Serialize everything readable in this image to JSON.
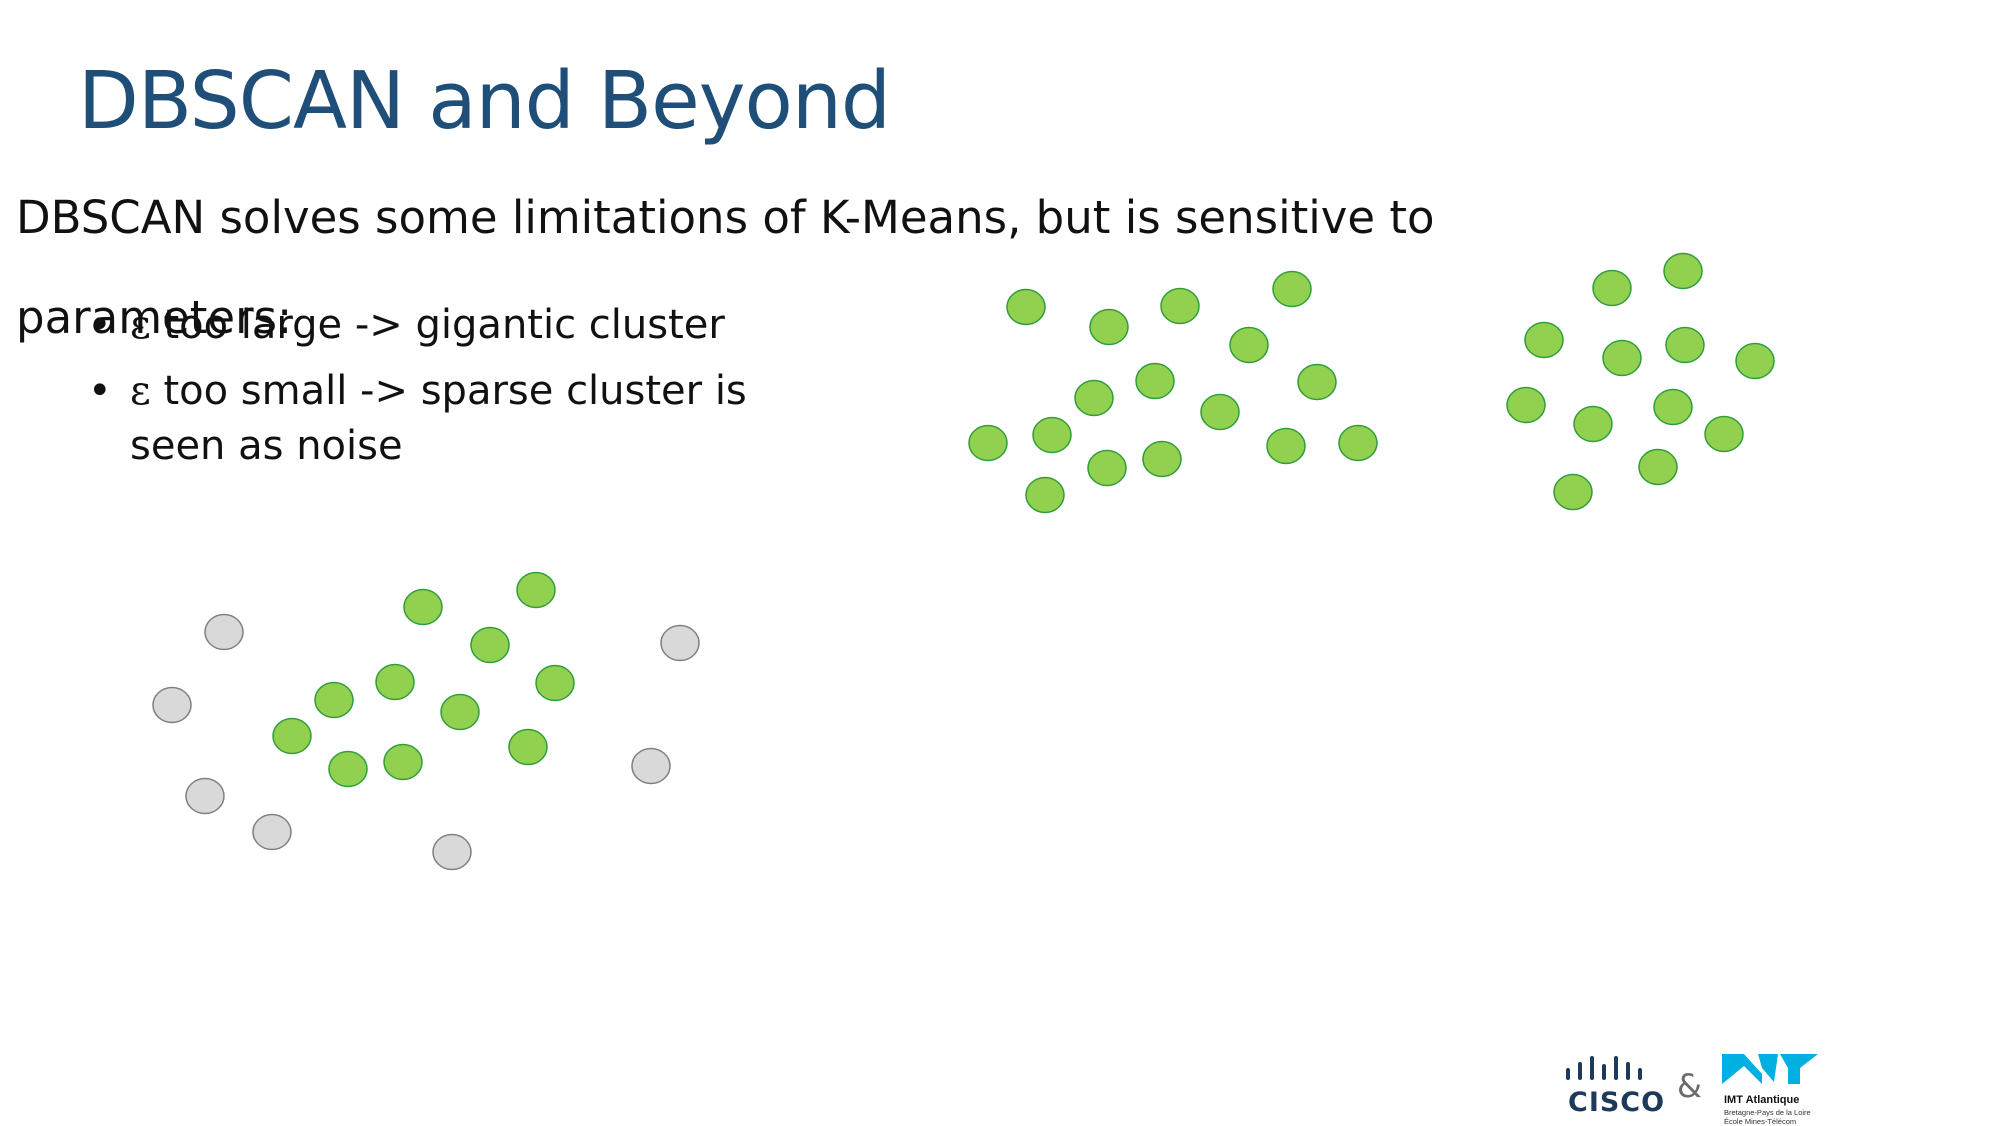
{
  "slide": {
    "title": "DBSCAN and Beyond",
    "body": "DBSCAN solves some limitations of K-Means, but is sensitive to parameters:",
    "bullets": [
      {
        "symbol": "ε",
        "text": " too large -> gigantic cluster"
      },
      {
        "symbol": "ε",
        "text": " too small -> sparse cluster is seen as noise"
      }
    ]
  },
  "colors": {
    "title": "#1f4e79",
    "cluster_fill": "#92d050",
    "cluster_stroke": "#2e9e3a",
    "noise_fill": "#d9d9d9",
    "noise_stroke": "#7f7f7f",
    "cisco": "#1d3a5a",
    "imt": "#00b0e0"
  },
  "footer": {
    "cisco_label": "CISCO",
    "ampersand": "&",
    "imt_name": "IMT Atlantique",
    "imt_line1": "Bretagne-Pays de la Loire",
    "imt_line2": "École Mines-Télécom"
  }
}
